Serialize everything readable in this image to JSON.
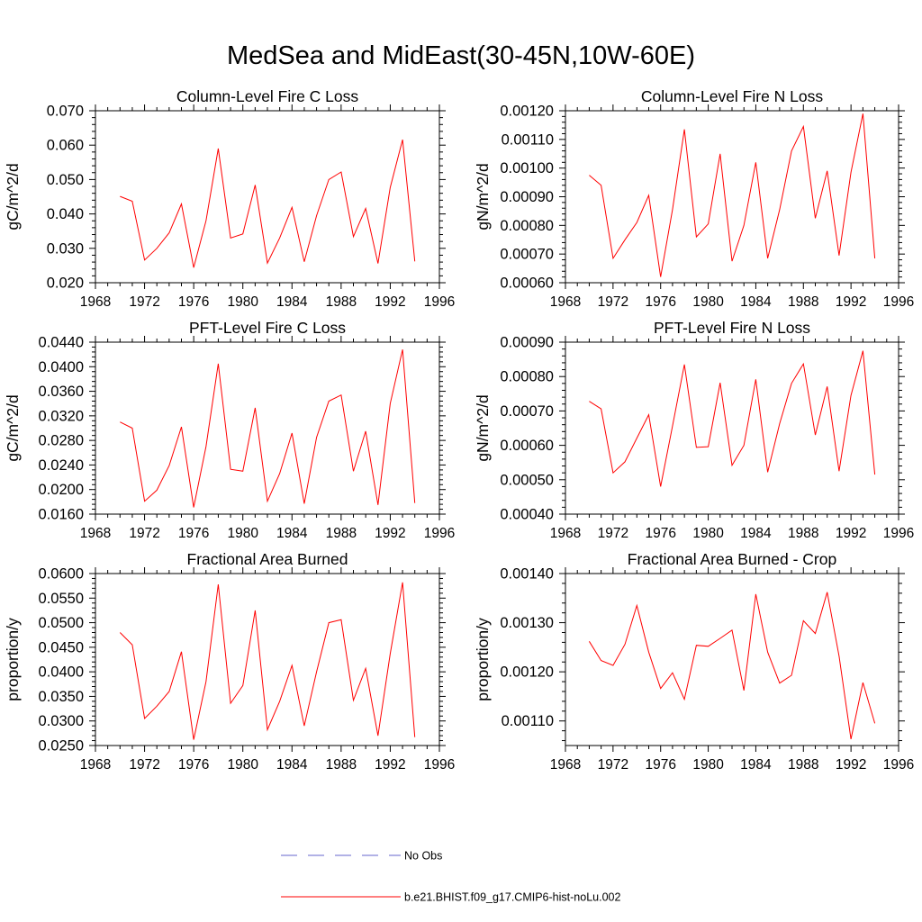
{
  "figure": {
    "title": "MedSea and MidEast(30-45N,10W-60E)",
    "line_color": "#ff0000",
    "obs_color": "#6666cc"
  },
  "legend": {
    "items": [
      {
        "label": "No Obs",
        "style": "dashed",
        "color": "#6666cc"
      },
      {
        "label": "b.e21.BHIST.f09_g17.CMIP6-hist-noLu.002",
        "style": "solid",
        "color": "#ff0000"
      }
    ]
  },
  "chart_data": [
    {
      "type": "line",
      "title": "Column-Level Fire C Loss",
      "ylabel": "gC/m^2/d",
      "xlim": [
        1968,
        1996
      ],
      "ylim": [
        0.02,
        0.07
      ],
      "xticks": [
        "1968",
        "1972",
        "1976",
        "1980",
        "1984",
        "1988",
        "1992",
        "1996"
      ],
      "yticks": [
        "0.020",
        "0.030",
        "0.040",
        "0.050",
        "0.060",
        "0.070"
      ],
      "x": [
        1970,
        1971,
        1972,
        1973,
        1974,
        1975,
        1976,
        1977,
        1978,
        1979,
        1980,
        1981,
        1982,
        1983,
        1984,
        1985,
        1986,
        1987,
        1988,
        1989,
        1990,
        1991,
        1992,
        1993,
        1994
      ],
      "series": [
        {
          "values": [
            0.0451,
            0.0437,
            0.0266,
            0.03,
            0.0345,
            0.0429,
            0.0244,
            0.038,
            0.059,
            0.033,
            0.0342,
            0.0484,
            0.0257,
            0.033,
            0.0419,
            0.0261,
            0.0395,
            0.05,
            0.0522,
            0.0334,
            0.0416,
            0.0256,
            0.0477,
            0.0616,
            0.0262
          ]
        }
      ]
    },
    {
      "type": "line",
      "title": "Column-Level Fire N Loss",
      "ylabel": "gN/m^2/d",
      "xlim": [
        1968,
        1996
      ],
      "ylim": [
        0.0006,
        0.0012
      ],
      "xticks": [
        "1968",
        "1972",
        "1976",
        "1980",
        "1984",
        "1988",
        "1992",
        "1996"
      ],
      "yticks": [
        "0.00060",
        "0.00070",
        "0.00080",
        "0.00090",
        "0.00100",
        "0.00110",
        "0.00120"
      ],
      "x": [
        1970,
        1971,
        1972,
        1973,
        1974,
        1975,
        1976,
        1977,
        1978,
        1979,
        1980,
        1981,
        1982,
        1983,
        1984,
        1985,
        1986,
        1987,
        1988,
        1989,
        1990,
        1991,
        1992,
        1993,
        1994
      ],
      "series": [
        {
          "values": [
            0.000975,
            0.00094,
            0.000685,
            0.00075,
            0.00081,
            0.000905,
            0.00062,
            0.000855,
            0.001135,
            0.00076,
            0.000805,
            0.00105,
            0.000675,
            0.0008,
            0.00102,
            0.000685,
            0.000855,
            0.00106,
            0.001145,
            0.000825,
            0.00099,
            0.000695,
            0.000985,
            0.00119,
            0.000685
          ]
        }
      ]
    },
    {
      "type": "line",
      "title": "PFT-Level Fire C Loss",
      "ylabel": "gC/m^2/d",
      "xlim": [
        1968,
        1996
      ],
      "ylim": [
        0.016,
        0.044
      ],
      "xticks": [
        "1968",
        "1972",
        "1976",
        "1980",
        "1984",
        "1988",
        "1992",
        "1996"
      ],
      "yticks": [
        "0.0160",
        "0.0200",
        "0.0240",
        "0.0280",
        "0.0320",
        "0.0360",
        "0.0400",
        "0.0440"
      ],
      "x": [
        1970,
        1971,
        1972,
        1973,
        1974,
        1975,
        1976,
        1977,
        1978,
        1979,
        1980,
        1981,
        1982,
        1983,
        1984,
        1985,
        1986,
        1987,
        1988,
        1989,
        1990,
        1991,
        1992,
        1993,
        1994
      ],
      "series": [
        {
          "values": [
            0.031,
            0.03,
            0.0181,
            0.0199,
            0.0239,
            0.0302,
            0.0171,
            0.027,
            0.0405,
            0.0233,
            0.023,
            0.0333,
            0.0181,
            0.0226,
            0.0292,
            0.0177,
            0.0285,
            0.0344,
            0.0354,
            0.023,
            0.0295,
            0.0175,
            0.034,
            0.0428,
            0.0178
          ]
        }
      ]
    },
    {
      "type": "line",
      "title": "PFT-Level Fire N Loss",
      "ylabel": "gN/m^2/d",
      "xlim": [
        1968,
        1996
      ],
      "ylim": [
        0.0004,
        0.0009
      ],
      "xticks": [
        "1968",
        "1972",
        "1976",
        "1980",
        "1984",
        "1988",
        "1992",
        "1996"
      ],
      "yticks": [
        "0.00040",
        "0.00050",
        "0.00060",
        "0.00070",
        "0.00080",
        "0.00090"
      ],
      "x": [
        1970,
        1971,
        1972,
        1973,
        1974,
        1975,
        1976,
        1977,
        1978,
        1979,
        1980,
        1981,
        1982,
        1983,
        1984,
        1985,
        1986,
        1987,
        1988,
        1989,
        1990,
        1991,
        1992,
        1993,
        1994
      ],
      "series": [
        {
          "values": [
            0.000728,
            0.000706,
            0.00052,
            0.000552,
            0.000621,
            0.000689,
            0.00048,
            0.000656,
            0.000835,
            0.000594,
            0.000596,
            0.000782,
            0.000542,
            0.0006,
            0.000792,
            0.000522,
            0.000663,
            0.00078,
            0.000837,
            0.00063,
            0.000771,
            0.000525,
            0.000745,
            0.000875,
            0.000515
          ]
        }
      ]
    },
    {
      "type": "line",
      "title": "Fractional Area Burned",
      "ylabel": "proportion/y",
      "xlim": [
        1968,
        1996
      ],
      "ylim": [
        0.025,
        0.06
      ],
      "xticks": [
        "1968",
        "1972",
        "1976",
        "1980",
        "1984",
        "1988",
        "1992",
        "1996"
      ],
      "yticks": [
        "0.0250",
        "0.0300",
        "0.0350",
        "0.0400",
        "0.0450",
        "0.0500",
        "0.0550",
        "0.0600"
      ],
      "x": [
        1970,
        1971,
        1972,
        1973,
        1974,
        1975,
        1976,
        1977,
        1978,
        1979,
        1980,
        1981,
        1982,
        1983,
        1984,
        1985,
        1986,
        1987,
        1988,
        1989,
        1990,
        1991,
        1992,
        1993,
        1994
      ],
      "series": [
        {
          "values": [
            0.048,
            0.0455,
            0.0305,
            0.033,
            0.036,
            0.0441,
            0.0262,
            0.038,
            0.0578,
            0.0336,
            0.0372,
            0.0525,
            0.0282,
            0.034,
            0.0413,
            0.029,
            0.04,
            0.05,
            0.0506,
            0.0342,
            0.0407,
            0.027,
            0.0437,
            0.0582,
            0.0267
          ]
        }
      ]
    },
    {
      "type": "line",
      "title": "Fractional Area Burned - Crop",
      "ylabel": "proportion/y",
      "xlim": [
        1968,
        1996
      ],
      "ylim": [
        0.00105,
        0.0014
      ],
      "xticks": [
        "1968",
        "1972",
        "1976",
        "1980",
        "1984",
        "1988",
        "1992",
        "1996"
      ],
      "yticks": [
        "0.00110",
        "0.00120",
        "0.00130",
        "0.00140"
      ],
      "x": [
        1970,
        1971,
        1972,
        1973,
        1974,
        1975,
        1976,
        1977,
        1978,
        1979,
        1980,
        1981,
        1982,
        1983,
        1984,
        1985,
        1986,
        1987,
        1988,
        1989,
        1990,
        1991,
        1992,
        1993,
        1994
      ],
      "series": [
        {
          "values": [
            0.001262,
            0.001223,
            0.001213,
            0.001256,
            0.001335,
            0.00124,
            0.001166,
            0.001198,
            0.001144,
            0.001254,
            0.001252,
            0.001268,
            0.001285,
            0.001162,
            0.001358,
            0.00124,
            0.001177,
            0.001193,
            0.001304,
            0.001278,
            0.001362,
            0.001232,
            0.001063,
            0.001178,
            0.001095
          ]
        }
      ]
    }
  ]
}
